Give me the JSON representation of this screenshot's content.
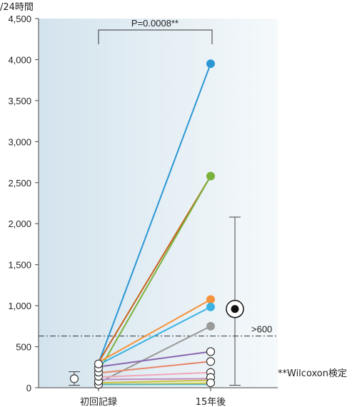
{
  "chart_data": {
    "type": "line",
    "ylabel": "/24時間",
    "ylim": [
      0,
      4500
    ],
    "yticks": [
      0,
      500,
      1000,
      1500,
      2000,
      2500,
      3000,
      3500,
      4000,
      4500
    ],
    "ytick_labels": [
      "0",
      "500",
      "1,000",
      "1,500",
      "2,000",
      "2,500",
      "3,000",
      "3,500",
      "4,000",
      "4,500"
    ],
    "categories": [
      "初回記録",
      "15年後"
    ],
    "series": [
      {
        "values": [
          300,
          3950
        ],
        "color": "#2a97d4"
      },
      {
        "values": [
          310,
          2580
        ],
        "color": "#c8621e"
      },
      {
        "values": [
          200,
          2580
        ],
        "color": "#7ab23c"
      },
      {
        "values": [
          310,
          1075
        ],
        "color": "#f5923a"
      },
      {
        "values": [
          280,
          985
        ],
        "color": "#3ab3e3"
      },
      {
        "values": [
          60,
          750
        ],
        "color": "#9a9a9a"
      },
      {
        "values": [
          255,
          440
        ],
        "color": "#8a66b0"
      },
      {
        "values": [
          180,
          320
        ],
        "color": "#e8866a"
      },
      {
        "values": [
          130,
          185
        ],
        "color": "#f0a6b8"
      },
      {
        "values": [
          100,
          110
        ],
        "color": "#c38cc0"
      },
      {
        "values": [
          60,
          90
        ],
        "color": "#c8c23a"
      },
      {
        "values": [
          40,
          55
        ],
        "color": "#e4cc2a"
      },
      {
        "values": [
          40,
          40
        ],
        "color": "#5ab8c4"
      }
    ],
    "initial_open_markers": [
      40,
      80,
      140,
      190,
      240,
      290
    ],
    "final_open_markers": [
      440,
      320,
      185,
      125,
      60
    ],
    "final_filled_markers": [
      {
        "value": 3950,
        "color": "#2a97d4"
      },
      {
        "value": 2580,
        "color": "#7ab23c"
      },
      {
        "value": 1075,
        "color": "#f5923a"
      },
      {
        "value": 985,
        "color": "#3ab3e3"
      },
      {
        "value": 750,
        "color": "#9a9a9a"
      }
    ],
    "summary_initial": {
      "mean": 110,
      "low": 30,
      "high": 195
    },
    "summary_final": {
      "mean": 960,
      "low": 30,
      "high": 2080
    },
    "threshold": {
      "value": 630,
      "label": ">600"
    },
    "significance": {
      "label": "P=0.0008**"
    },
    "footnote": "**Wilcoxon検定"
  }
}
